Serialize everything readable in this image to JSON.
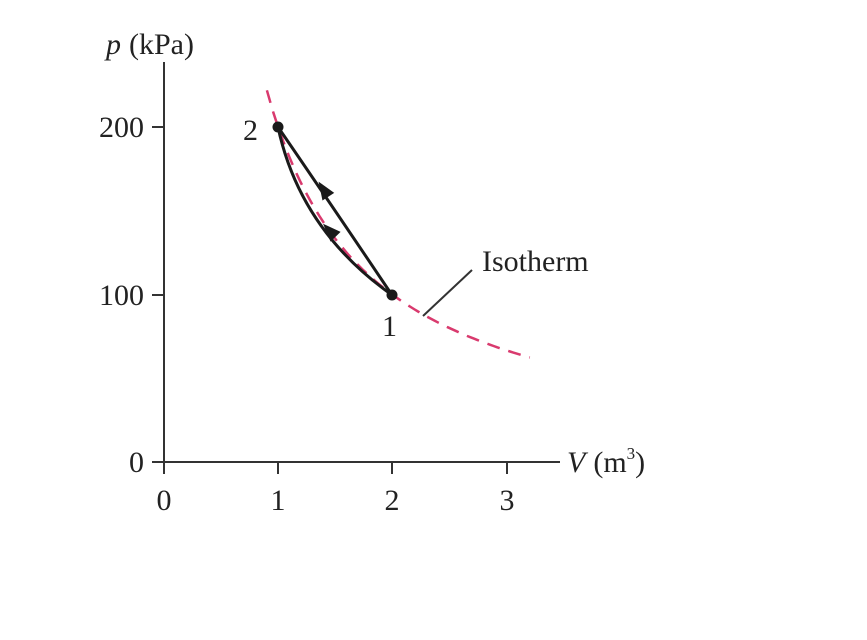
{
  "chart_data": {
    "type": "line",
    "y_axis": {
      "label_var": "p",
      "label_unit": "(kPa)",
      "range": [
        0,
        240
      ],
      "ticks": [
        "0",
        "100",
        "200"
      ]
    },
    "x_axis": {
      "label_var": "V",
      "label_unit": "(m",
      "label_unit_sup": "3",
      "label_unit_close": ")",
      "range": [
        0,
        3.4
      ],
      "ticks": [
        "0",
        "1",
        "2",
        "3"
      ]
    },
    "states": [
      {
        "label": "1",
        "V": 2,
        "p": 100
      },
      {
        "label": "2",
        "V": 1,
        "p": 200
      }
    ],
    "isotherm": {
      "label": "Isotherm",
      "pV_product": 200,
      "V_range": [
        0.9,
        3.2
      ]
    },
    "processes": [
      {
        "from": "1",
        "to": "2",
        "path": "upper",
        "arrow": true
      },
      {
        "from": "1",
        "to": "2",
        "path": "lower",
        "arrow": true
      }
    ],
    "colors": {
      "isotherm": "#d93a6e",
      "path": "#1a1a1a",
      "axis": "#333333"
    },
    "grid": false
  }
}
